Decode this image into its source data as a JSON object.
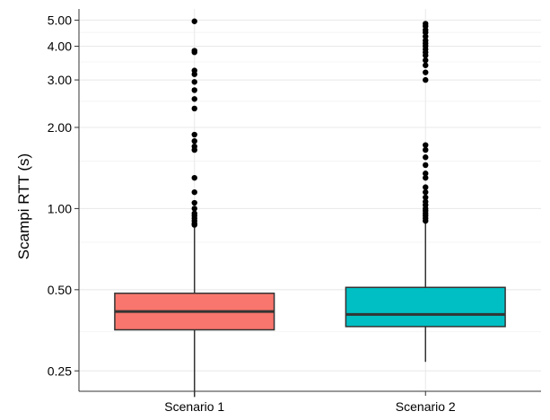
{
  "chart_data": {
    "type": "box",
    "title": "",
    "xlabel": "",
    "ylabel": "Scampi RTT (s)",
    "y_scale": "log",
    "ylim": [
      0.21,
      5.5
    ],
    "y_ticks": [
      0.25,
      0.5,
      1.0,
      2.0,
      3.0,
      4.0,
      5.0
    ],
    "y_tick_labels": [
      "0.25",
      "0.50",
      "1.00",
      "2.00",
      "3.00",
      "4.00",
      "5.00"
    ],
    "y_minor_ticks": [
      0.35,
      0.75,
      1.5,
      2.5,
      3.5,
      4.5
    ],
    "grid": true,
    "categories": [
      "Scenario 1",
      "Scenario 2"
    ],
    "series": [
      {
        "category": "Scenario 1",
        "color": "#F8766D",
        "q1": 0.355,
        "median": 0.415,
        "q3": 0.485,
        "whisker_low": 0.2,
        "whisker_high": 0.85,
        "outliers": [
          0.87,
          0.88,
          0.9,
          0.92,
          0.94,
          0.96,
          1.0,
          1.05,
          1.15,
          1.3,
          1.65,
          1.7,
          1.78,
          1.88,
          2.35,
          2.55,
          2.75,
          2.95,
          3.15,
          3.25,
          3.8,
          3.85,
          4.95
        ]
      },
      {
        "category": "Scenario 2",
        "color": "#00BFC4",
        "q1": 0.365,
        "median": 0.405,
        "q3": 0.51,
        "whisker_low": 0.27,
        "whisker_high": 0.88,
        "outliers": [
          0.9,
          0.92,
          0.94,
          0.96,
          0.98,
          1.0,
          1.03,
          1.06,
          1.1,
          1.15,
          1.2,
          1.3,
          1.35,
          1.45,
          1.55,
          1.65,
          1.72,
          3.0,
          3.2,
          3.4,
          3.55,
          3.7,
          3.8,
          3.9,
          4.0,
          4.1,
          4.2,
          4.35,
          4.5,
          4.6,
          4.75,
          4.85
        ]
      }
    ]
  }
}
